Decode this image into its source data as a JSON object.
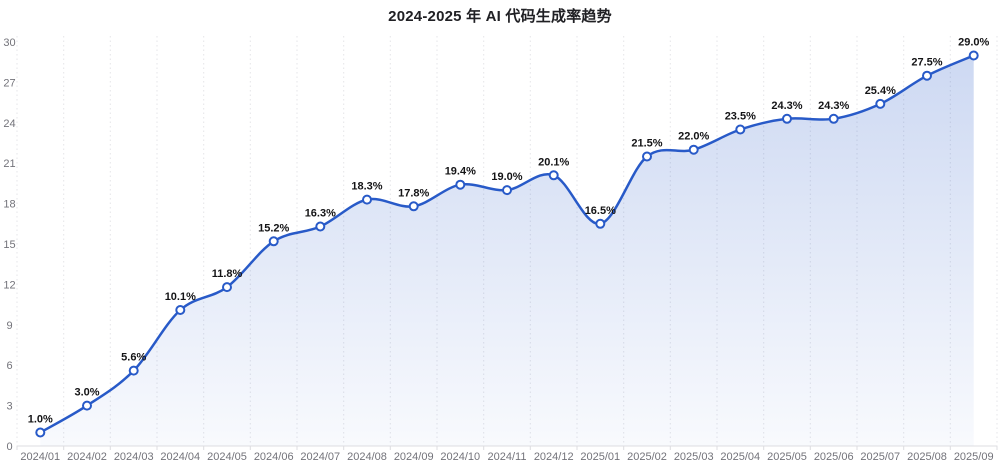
{
  "title": "2024-2025 年 AI 代码生成率趋势",
  "colors": {
    "line": "#285ac8",
    "marker_fill": "#ffffff",
    "area_top": "rgba(40,90,200,0.24)",
    "area_bottom": "rgba(40,90,200,0.03)",
    "gridline": "#e4e4e8",
    "axis_line": "#dcdce0",
    "axis_label": "#73737a",
    "data_label": "#141416",
    "title_color": "#202024"
  },
  "chart_data": {
    "type": "line",
    "title": "2024-2025 年 AI 代码生成率趋势",
    "categories": [
      "2024/01",
      "2024/02",
      "2024/03",
      "2024/04",
      "2024/05",
      "2024/06",
      "2024/07",
      "2024/08",
      "2024/09",
      "2024/10",
      "2024/11",
      "2024/12",
      "2025/01",
      "2025/02",
      "2025/03",
      "2025/04",
      "2025/05",
      "2025/06",
      "2025/07",
      "2025/08",
      "2025/09"
    ],
    "values": [
      1.0,
      3.0,
      5.6,
      10.1,
      11.8,
      15.2,
      16.3,
      18.3,
      17.8,
      19.4,
      19.0,
      20.1,
      16.5,
      21.5,
      22.0,
      23.5,
      24.3,
      24.3,
      25.4,
      27.5,
      29.0
    ],
    "point_labels": [
      "1.0%",
      "3.0%",
      "5.6%",
      "10.1%",
      "11.8%",
      "15.2%",
      "16.3%",
      "18.3%",
      "17.8%",
      "19.4%",
      "19.0%",
      "20.1%",
      "16.5%",
      "21.5%",
      "22.0%",
      "23.5%",
      "24.3%",
      "24.3%",
      "25.4%",
      "27.5%",
      "29.0%"
    ],
    "xlabel": "",
    "ylabel": "",
    "ylim": [
      0,
      30
    ],
    "yticks": [
      0,
      3,
      6,
      9,
      12,
      15,
      18,
      21,
      24,
      27,
      30
    ],
    "smooth": true,
    "area": true,
    "grid": "vertical-dotted",
    "legend": "none",
    "marker": "open-circle"
  }
}
